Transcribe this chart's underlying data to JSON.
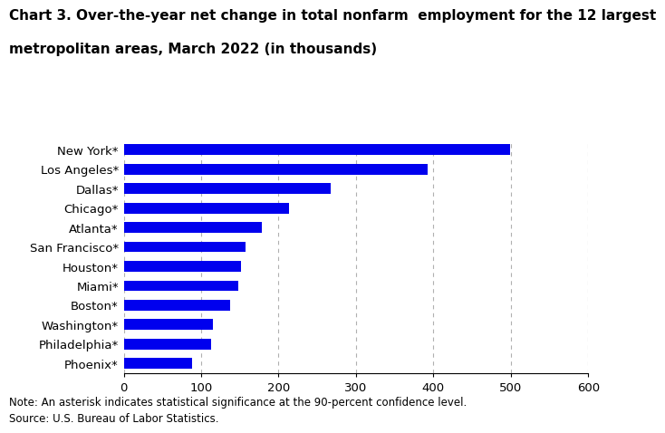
{
  "title_line1": "Chart 3. Over-the-year net change in total nonfarm  employment for the 12 largest",
  "title_line2": "metropolitan areas, March 2022 (in thousands)",
  "categories": [
    "Phoenix*",
    "Philadelphia*",
    "Washington*",
    "Boston*",
    "Miami*",
    "Houston*",
    "San Francisco*",
    "Atlanta*",
    "Chicago*",
    "Dallas*",
    "Los Angeles*",
    "New York*"
  ],
  "values": [
    88,
    113,
    115,
    138,
    148,
    152,
    157,
    178,
    213,
    267,
    392,
    499
  ],
  "bar_color": "#0000EE",
  "xlim": [
    0,
    600
  ],
  "xticks": [
    0,
    100,
    200,
    300,
    400,
    500,
    600
  ],
  "grid_color": "#b0b0b0",
  "note": "Note: An asterisk indicates statistical significance at the 90-percent confidence level.",
  "source": "Source: U.S. Bureau of Labor Statistics.",
  "title_fontsize": 11,
  "tick_fontsize": 9.5,
  "note_fontsize": 8.5,
  "bar_height": 0.55
}
